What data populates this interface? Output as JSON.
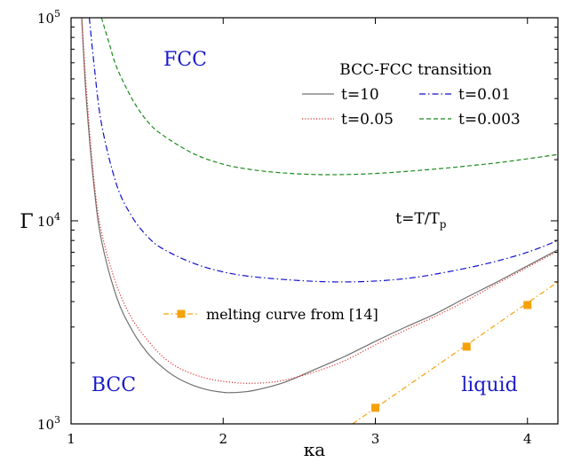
{
  "chart_data": {
    "type": "line",
    "xlabel": "κa",
    "ylabel": "Γ",
    "xlim": [
      1.0,
      4.2
    ],
    "ylim": [
      1000,
      100000
    ],
    "yscale": "log",
    "grid": false,
    "xticks": [
      {
        "value": 1,
        "label": "1"
      },
      {
        "value": 2,
        "label": "2"
      },
      {
        "value": 3,
        "label": "3"
      },
      {
        "value": 4,
        "label": "4"
      }
    ],
    "yticks": [
      {
        "value": 1000,
        "base": "10",
        "exp": "3"
      },
      {
        "value": 10000,
        "base": "10",
        "exp": "4"
      },
      {
        "value": 100000,
        "base": "10",
        "exp": "5"
      }
    ],
    "legend_title": "BCC-FCC transition",
    "legend_position": "top-right",
    "series": [
      {
        "name": "t=10",
        "color": "#707070",
        "dash": "solid",
        "x": [
          1.07,
          1.1,
          1.15,
          1.2,
          1.3,
          1.4,
          1.5,
          1.6,
          1.7,
          1.8,
          1.9,
          2.0,
          2.05,
          2.1,
          2.2,
          2.4,
          2.6,
          2.8,
          3.0,
          3.2,
          3.4,
          3.6,
          3.8,
          4.0,
          4.2
        ],
        "y": [
          100000,
          40000,
          15000,
          8000,
          4200,
          2900,
          2250,
          1900,
          1680,
          1550,
          1470,
          1430,
          1425,
          1430,
          1460,
          1600,
          1850,
          2150,
          2550,
          3000,
          3500,
          4200,
          5000,
          6000,
          7200
        ]
      },
      {
        "name": "t=0.05",
        "color": "#e03030",
        "dash": "dotted",
        "x": [
          1.07,
          1.1,
          1.15,
          1.2,
          1.3,
          1.4,
          1.5,
          1.6,
          1.7,
          1.8,
          1.9,
          2.0,
          2.1,
          2.2,
          2.3,
          2.4,
          2.6,
          2.8,
          3.0,
          3.2,
          3.4,
          3.6,
          3.8,
          4.0,
          4.2
        ],
        "y": [
          100000,
          45000,
          16000,
          8800,
          4800,
          3300,
          2600,
          2150,
          1900,
          1760,
          1670,
          1620,
          1590,
          1585,
          1600,
          1640,
          1800,
          2050,
          2450,
          2900,
          3400,
          4050,
          4900,
          5900,
          7100
        ]
      },
      {
        "name": "t=0.01",
        "color": "#1010cc",
        "dash": "dashdot",
        "x": [
          1.12,
          1.15,
          1.2,
          1.3,
          1.4,
          1.5,
          1.6,
          1.8,
          2.0,
          2.2,
          2.5,
          2.75,
          3.0,
          3.25,
          3.5,
          3.75,
          4.0,
          4.2
        ],
        "y": [
          100000,
          60000,
          30000,
          15000,
          10500,
          8400,
          7300,
          6200,
          5600,
          5300,
          5080,
          5000,
          5050,
          5250,
          5650,
          6200,
          7000,
          8000
        ]
      },
      {
        "name": "t=0.003",
        "color": "#1a8a1a",
        "dash": "dashed",
        "x": [
          1.2,
          1.25,
          1.3,
          1.4,
          1.5,
          1.6,
          1.8,
          2.0,
          2.2,
          2.4,
          2.6,
          2.8,
          3.0,
          3.2,
          3.4,
          3.6,
          3.8,
          4.0,
          4.2
        ],
        "y": [
          100000,
          75000,
          57000,
          40000,
          31000,
          26500,
          21500,
          19000,
          17800,
          17200,
          16900,
          16900,
          17100,
          17500,
          18000,
          18600,
          19300,
          20200,
          21200
        ]
      }
    ],
    "melting": {
      "label": "melting curve from [14]",
      "color": "#f5a10a",
      "x": [
        3.0,
        3.6,
        4.0
      ],
      "y": [
        1200,
        2400,
        3850
      ],
      "line_x": [
        2.85,
        4.2
      ],
      "line_y": [
        1000,
        5000
      ]
    },
    "annotations": [
      {
        "text": "FCC",
        "color": "#1a1acc",
        "x": 1.75,
        "y": 58000
      },
      {
        "text": "BCC",
        "color": "#1a1acc",
        "x": 1.28,
        "y": 1450
      },
      {
        "text": "liquid",
        "color": "#1a1acc",
        "x": 3.75,
        "y": 1450
      }
    ],
    "t_label": {
      "prefix": "t=T/T",
      "sub": "p",
      "x": 3.3,
      "y": 9700
    }
  }
}
